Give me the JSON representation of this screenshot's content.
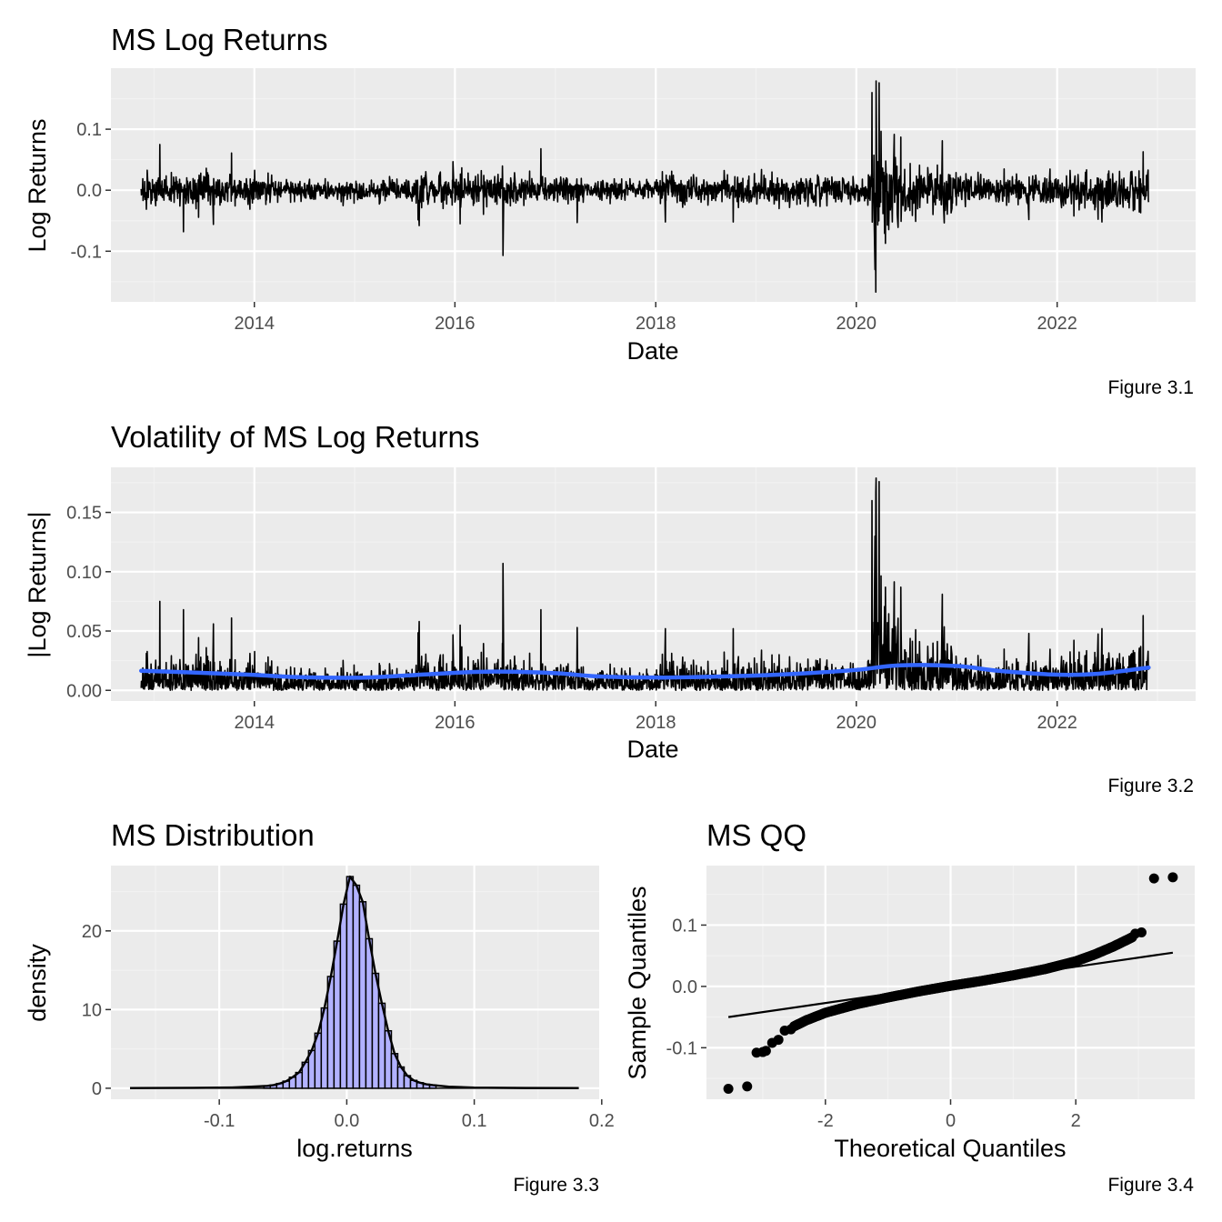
{
  "chart_data": [
    {
      "type": "line",
      "title": "MS Log Returns",
      "xlabel": "Date",
      "ylabel": "Log Returns",
      "caption": "Figure 3.1",
      "x_range": [
        "2012-11-15",
        "2022-11-30"
      ],
      "xlim": [
        "2012-07-28",
        "2023-05-20"
      ],
      "ylim": [
        -0.183,
        0.2
      ],
      "x_ticks": [
        "2014",
        "2016",
        "2018",
        "2020",
        "2022"
      ],
      "y_ticks": [
        -0.1,
        0.0,
        0.1
      ],
      "y_tick_labels": [
        "-0.1",
        "0.0",
        "0.1"
      ],
      "grid": true,
      "series": [
        {
          "color": "#000000",
          "typical_band": [
            -0.03,
            0.03
          ],
          "spikes": [
            {
              "x": "2013-01-22",
              "y": 0.075
            },
            {
              "x": "2013-04-18",
              "y": -0.068
            },
            {
              "x": "2013-08-05",
              "y": -0.056
            },
            {
              "x": "2013-10-10",
              "y": 0.061
            },
            {
              "x": "2015-08-24",
              "y": -0.058
            },
            {
              "x": "2016-01-20",
              "y": -0.055
            },
            {
              "x": "2016-06-24",
              "y": -0.107
            },
            {
              "x": "2016-11-09",
              "y": 0.068
            },
            {
              "x": "2017-03-21",
              "y": -0.053
            },
            {
              "x": "2018-02-05",
              "y": -0.052
            },
            {
              "x": "2018-10-10",
              "y": -0.052
            },
            {
              "x": "2020-02-27",
              "y": 0.16
            },
            {
              "x": "2020-03-09",
              "y": -0.13
            },
            {
              "x": "2020-03-12",
              "y": -0.167
            },
            {
              "x": "2020-03-13",
              "y": 0.179
            },
            {
              "x": "2020-03-24",
              "y": 0.176
            },
            {
              "x": "2020-04-16",
              "y": -0.087
            },
            {
              "x": "2020-06-11",
              "y": 0.087
            },
            {
              "x": "2020-11-09",
              "y": 0.081
            },
            {
              "x": "2021-09-20",
              "y": -0.048
            },
            {
              "x": "2022-06-13",
              "y": -0.052
            },
            {
              "x": "2022-11-10",
              "y": 0.063
            }
          ]
        }
      ]
    },
    {
      "type": "line",
      "title": "Volatility of MS Log Returns",
      "xlabel": "Date",
      "ylabel": "|Log Returns|",
      "caption": "Figure 3.2",
      "x_range": [
        "2012-11-15",
        "2022-11-30"
      ],
      "xlim": [
        "2012-07-28",
        "2023-05-20"
      ],
      "ylim": [
        -0.009,
        0.188
      ],
      "x_ticks": [
        "2014",
        "2016",
        "2018",
        "2020",
        "2022"
      ],
      "y_ticks": [
        0.0,
        0.05,
        0.1,
        0.15
      ],
      "y_tick_labels": [
        "0.00",
        "0.05",
        "0.10",
        "0.15"
      ],
      "grid": true,
      "series": [
        {
          "color": "#000000",
          "note": "absolute daily log returns"
        },
        {
          "color": "#3366ff",
          "smooth_x": [
            "2012-11-15",
            "2013-06-01",
            "2014-01-01",
            "2014-06-01",
            "2015-01-01",
            "2015-06-01",
            "2016-01-01",
            "2016-06-01",
            "2017-01-01",
            "2017-06-01",
            "2018-01-01",
            "2018-06-01",
            "2019-01-01",
            "2019-06-01",
            "2020-01-01",
            "2020-06-01",
            "2021-01-01",
            "2021-06-01",
            "2022-01-01",
            "2022-06-01",
            "2022-11-30"
          ],
          "smooth_y": [
            0.0165,
            0.015,
            0.013,
            0.0112,
            0.0106,
            0.012,
            0.0148,
            0.0158,
            0.0145,
            0.0118,
            0.0108,
            0.0112,
            0.0125,
            0.014,
            0.0172,
            0.021,
            0.0205,
            0.0165,
            0.0132,
            0.014,
            0.0192
          ]
        }
      ]
    },
    {
      "type": "histogram",
      "title": "MS Distribution",
      "xlabel": "log.returns",
      "ylabel": "density",
      "caption": "Figure 3.3",
      "xlim": [
        -0.185,
        0.198
      ],
      "ylim": [
        -1.4,
        28.3
      ],
      "x_ticks": [
        -0.1,
        0.0,
        0.1,
        0.2
      ],
      "x_tick_labels": [
        "-0.1",
        "0.0",
        "0.1",
        "0.2"
      ],
      "y_ticks": [
        0,
        10,
        20
      ],
      "y_tick_labels": [
        "0",
        "10",
        "20"
      ],
      "grid": true,
      "bar_fill": "#b2b2ff",
      "bin_width": 0.005,
      "bins_start": -0.065,
      "densities": [
        0.3,
        0.4,
        0.6,
        0.9,
        1.4,
        2.0,
        3.3,
        4.8,
        7.0,
        10.2,
        14.2,
        18.7,
        23.4,
        26.9,
        25.8,
        23.7,
        19.0,
        14.6,
        10.8,
        7.3,
        4.4,
        2.7,
        1.6,
        1.0,
        0.7,
        0.5,
        0.4
      ],
      "density_curve_color": "#000000"
    },
    {
      "type": "scatter",
      "title": "MS QQ",
      "xlabel": "Theoretical Quantiles",
      "ylabel": "Sample Quantiles",
      "caption": "Figure 3.4",
      "xlim": [
        -3.9,
        3.9
      ],
      "ylim": [
        -0.184,
        0.197
      ],
      "x_ticks": [
        -2,
        0,
        2
      ],
      "x_tick_labels": [
        "-2",
        "0",
        "2"
      ],
      "y_ticks": [
        -0.1,
        0.0,
        0.1
      ],
      "y_tick_labels": [
        "-0.1",
        "0.0",
        "0.1"
      ],
      "grid": true,
      "reference_line": {
        "x": [
          -3.55,
          3.55
        ],
        "y": [
          -0.05,
          0.055
        ]
      },
      "tail_points": [
        {
          "x": -3.55,
          "y": -0.167
        },
        {
          "x": -3.25,
          "y": -0.163
        },
        {
          "x": -3.1,
          "y": -0.108
        },
        {
          "x": -3.0,
          "y": -0.107
        },
        {
          "x": -2.95,
          "y": -0.105
        },
        {
          "x": -2.85,
          "y": -0.092
        },
        {
          "x": -2.75,
          "y": -0.087
        },
        {
          "x": -2.65,
          "y": -0.072
        },
        {
          "x": -2.55,
          "y": -0.07
        },
        {
          "x": 2.95,
          "y": 0.086
        },
        {
          "x": 3.05,
          "y": 0.088
        },
        {
          "x": 3.25,
          "y": 0.176
        },
        {
          "x": 3.55,
          "y": 0.178
        }
      ],
      "body_quantiles": {
        "x": [
          -2.5,
          -2.3,
          -2.0,
          -1.5,
          -1.0,
          -0.5,
          0.0,
          0.5,
          1.0,
          1.5,
          2.0,
          2.3,
          2.6,
          2.9
        ],
        "y": [
          -0.065,
          -0.055,
          -0.043,
          -0.029,
          -0.018,
          -0.008,
          0.001,
          0.009,
          0.018,
          0.028,
          0.041,
          0.052,
          0.065,
          0.08
        ]
      }
    }
  ]
}
